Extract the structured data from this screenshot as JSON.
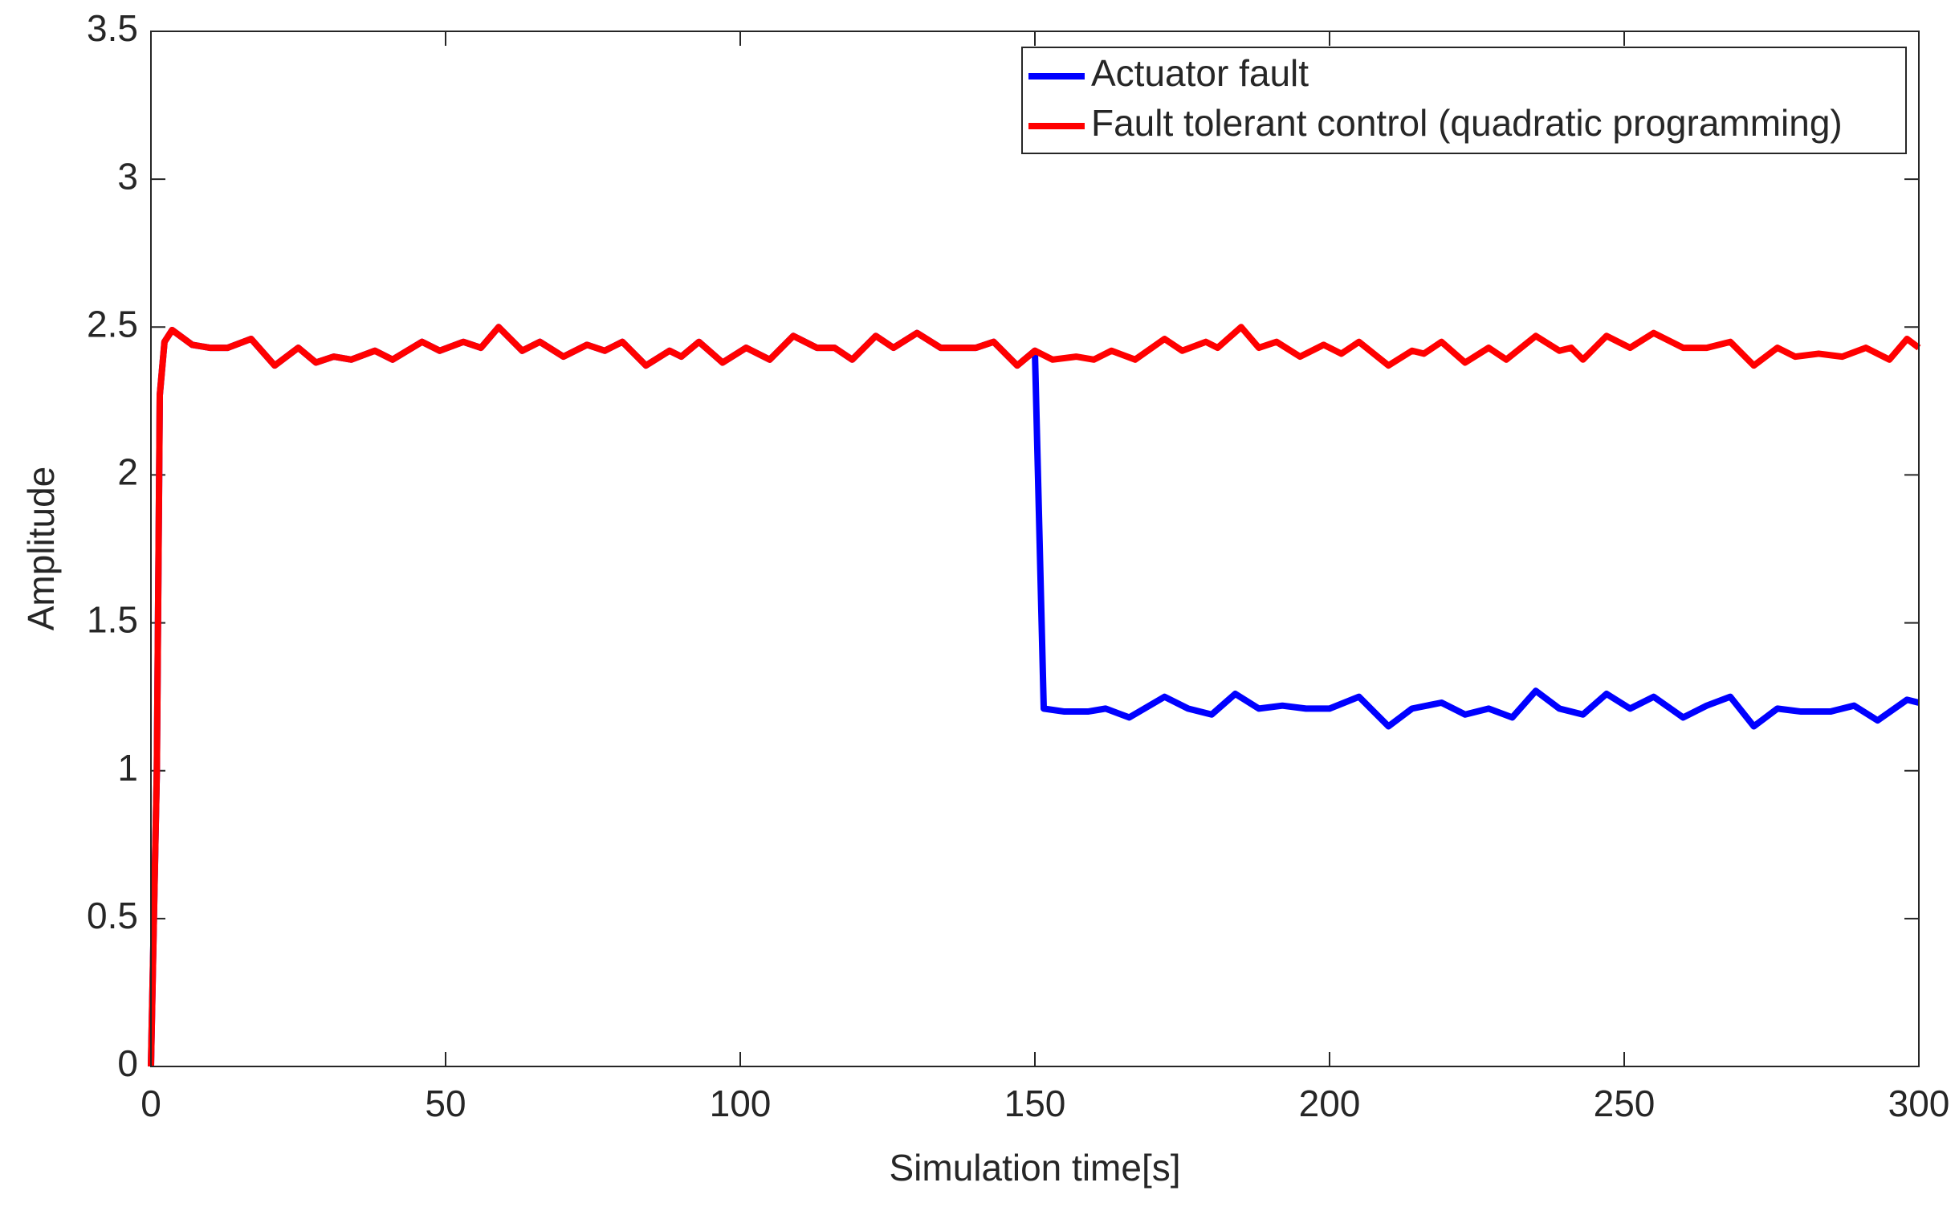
{
  "chart_data": {
    "type": "line",
    "xlabel": "Simulation time[s]",
    "ylabel": "Amplitude",
    "xlim": [
      0,
      300
    ],
    "xticks": [
      0,
      50,
      100,
      150,
      200,
      250,
      300
    ],
    "ylim": [
      0,
      3.5
    ],
    "yticks": [
      0,
      0.5,
      1,
      1.5,
      2,
      2.5,
      3,
      3.5
    ],
    "legend": "upper right",
    "series": [
      {
        "name": "Actuator fault",
        "color": "#0000ff",
        "x": [
          0,
          1,
          1.5,
          2.3,
          3.6,
          7,
          10,
          13,
          17,
          21,
          25,
          28,
          31,
          34,
          38,
          41,
          46,
          49,
          53,
          56,
          59,
          63,
          66,
          70,
          74,
          77,
          80,
          84,
          88,
          90,
          93,
          97,
          101,
          105,
          109,
          113,
          116,
          119,
          123,
          126,
          130,
          134,
          137,
          140,
          143,
          147,
          150,
          151.5,
          155,
          159,
          162,
          166,
          172,
          176,
          180,
          184,
          188,
          192,
          196,
          200,
          205,
          210,
          214,
          219,
          223,
          227,
          231,
          235,
          239,
          243,
          247,
          251,
          255,
          260,
          264,
          268,
          272,
          276,
          280,
          285,
          289,
          293,
          298,
          300
        ],
        "values": [
          0,
          1.0,
          2.27,
          2.45,
          2.49,
          2.44,
          2.43,
          2.43,
          2.46,
          2.37,
          2.43,
          2.38,
          2.4,
          2.39,
          2.42,
          2.39,
          2.45,
          2.42,
          2.45,
          2.43,
          2.5,
          2.42,
          2.45,
          2.4,
          2.44,
          2.42,
          2.45,
          2.37,
          2.42,
          2.4,
          2.45,
          2.38,
          2.43,
          2.39,
          2.47,
          2.43,
          2.43,
          2.39,
          2.47,
          2.43,
          2.48,
          2.43,
          2.43,
          2.43,
          2.45,
          2.37,
          2.42,
          1.21,
          1.2,
          1.2,
          1.21,
          1.18,
          1.25,
          1.21,
          1.19,
          1.26,
          1.21,
          1.22,
          1.21,
          1.21,
          1.25,
          1.15,
          1.21,
          1.23,
          1.19,
          1.21,
          1.18,
          1.27,
          1.21,
          1.19,
          1.26,
          1.21,
          1.25,
          1.18,
          1.22,
          1.25,
          1.15,
          1.21,
          1.2,
          1.2,
          1.22,
          1.17,
          1.24,
          1.23
        ]
      },
      {
        "name": "Fault tolerant control (quadratic programming)",
        "color": "#ff0000",
        "x": [
          0,
          1,
          1.5,
          2.3,
          3.6,
          7,
          10,
          13,
          17,
          21,
          25,
          28,
          31,
          34,
          38,
          41,
          46,
          49,
          53,
          56,
          59,
          63,
          66,
          70,
          74,
          77,
          80,
          84,
          88,
          90,
          93,
          97,
          101,
          105,
          109,
          113,
          116,
          119,
          123,
          126,
          130,
          134,
          137,
          140,
          143,
          147,
          150,
          153,
          157,
          160,
          163,
          167,
          172,
          175,
          179,
          181,
          185,
          188,
          191,
          195,
          199,
          202,
          205,
          210,
          214,
          216,
          219,
          223,
          227,
          230,
          235,
          239,
          241,
          243,
          247,
          251,
          255,
          260,
          264,
          268,
          272,
          276,
          279,
          283,
          287,
          291,
          295,
          298,
          300
        ],
        "values": [
          0,
          1.0,
          2.27,
          2.45,
          2.49,
          2.44,
          2.43,
          2.43,
          2.46,
          2.37,
          2.43,
          2.38,
          2.4,
          2.39,
          2.42,
          2.39,
          2.45,
          2.42,
          2.45,
          2.43,
          2.5,
          2.42,
          2.45,
          2.4,
          2.44,
          2.42,
          2.45,
          2.37,
          2.42,
          2.4,
          2.45,
          2.38,
          2.43,
          2.39,
          2.47,
          2.43,
          2.43,
          2.39,
          2.47,
          2.43,
          2.48,
          2.43,
          2.43,
          2.43,
          2.45,
          2.37,
          2.42,
          2.39,
          2.4,
          2.39,
          2.42,
          2.39,
          2.46,
          2.42,
          2.45,
          2.43,
          2.5,
          2.43,
          2.45,
          2.4,
          2.44,
          2.41,
          2.45,
          2.37,
          2.42,
          2.41,
          2.45,
          2.38,
          2.43,
          2.39,
          2.47,
          2.42,
          2.43,
          2.39,
          2.47,
          2.43,
          2.48,
          2.43,
          2.43,
          2.45,
          2.37,
          2.43,
          2.4,
          2.41,
          2.4,
          2.43,
          2.39,
          2.46,
          2.43
        ]
      }
    ]
  }
}
